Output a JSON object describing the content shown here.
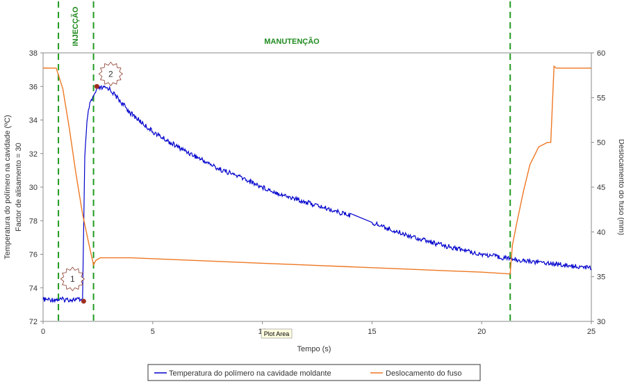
{
  "chart_data": {
    "type": "line",
    "title": "",
    "xlabel": "Tempo (s)",
    "ylabel_left": [
      "Temperatura do polímero na cavidade (ºC)",
      "Factor de alisamento = 30"
    ],
    "ylabel_right": "Deslocamento do fuso (mm)",
    "xlim": [
      0,
      25
    ],
    "ylim_left": [
      72,
      38
    ],
    "ylim_right": [
      30,
      60
    ],
    "x_ticks": [
      0,
      5,
      10,
      15,
      20,
      25
    ],
    "x_tick_labels": [
      "0",
      "5",
      "10",
      "15",
      "20",
      "25"
    ],
    "y_left_tick_labels": [
      "72",
      "74",
      "76",
      "78",
      "30",
      "32",
      "34",
      "36",
      "38"
    ],
    "y_right_ticks": [
      30,
      35,
      40,
      45,
      50,
      55,
      60
    ],
    "y_right_tick_labels": [
      "30",
      "35",
      "40",
      "45",
      "50",
      "55",
      "60"
    ],
    "phases": [
      {
        "label": "INJECÇÃO",
        "x_start": 0.7,
        "x_end": 2.3
      },
      {
        "label": "MANUTENÇÃO",
        "x_start": 2.3,
        "x_end": 21.3
      }
    ],
    "annotations": [
      {
        "label": "1",
        "x": 1.85,
        "y_left": 73.2
      },
      {
        "label": "2",
        "x": 2.45,
        "y_left": 36.0
      }
    ],
    "series": [
      {
        "name": "Temperatura do polímero na cavidade moldante",
        "axis": "left",
        "color": "#0000cc",
        "x": [
          0,
          1.8,
          1.9,
          2.0,
          2.1,
          2.3,
          2.5,
          3,
          4,
          5,
          6,
          7,
          8,
          9,
          10,
          11,
          12,
          13,
          14,
          15,
          16,
          17,
          18,
          19,
          20,
          21,
          22,
          23,
          24,
          25
        ],
        "y": [
          73.3,
          73.3,
          31.8,
          33.8,
          34.8,
          35.4,
          35.9,
          35.9,
          34.4,
          33.3,
          32.5,
          31.8,
          31.1,
          30.6,
          30.0,
          29.5,
          29.1,
          28.7,
          28.3,
          77.9,
          77.4,
          77.0,
          76.6,
          76.3,
          76.0,
          75.8,
          75.6,
          75.5,
          75.3,
          75.2
        ]
      },
      {
        "name": "Deslocamento do fuso",
        "axis": "right",
        "color": "#ee7722",
        "x": [
          0,
          0.6,
          0.9,
          1.2,
          1.5,
          1.8,
          2.1,
          2.3,
          2.4,
          2.6,
          4,
          6,
          8,
          10,
          12,
          14,
          16,
          18,
          20,
          21.3,
          21.4,
          21.6,
          21.9,
          22.2,
          22.6,
          23.0,
          23.15,
          23.3,
          23.4,
          25
        ],
        "y": [
          58.3,
          58.3,
          56.0,
          51.5,
          46.5,
          42.0,
          38.5,
          36.3,
          36.8,
          37.1,
          37.1,
          36.9,
          36.7,
          36.5,
          36.3,
          36.1,
          35.9,
          35.7,
          35.5,
          35.3,
          38.5,
          41.0,
          44.5,
          47.5,
          49.5,
          50.0,
          50.0,
          58.5,
          58.3,
          58.3
        ]
      }
    ],
    "legend_position": "bottom"
  },
  "ui": {
    "plot_area_tag": "Plot Area"
  }
}
